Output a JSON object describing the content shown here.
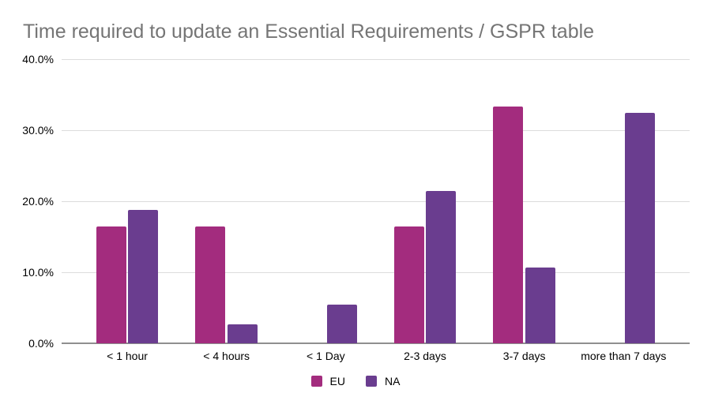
{
  "title": "Time required to update an Essential Requirements / GSPR table",
  "colors": {
    "eu_series": "#A32C7E",
    "na_series": "#6A3D8F",
    "title_text": "#757575",
    "gridline": "#dcdcdc",
    "axis_line": "#8f8f8f",
    "label_text": "#000000"
  },
  "y_axis": {
    "ticks": [
      "40.0%",
      "30.0%",
      "20.0%",
      "10.0%",
      "0.0%"
    ]
  },
  "chart_data": {
    "type": "bar",
    "title": "Time required to update an Essential Requirements / GSPR table",
    "categories": [
      "< 1 hour",
      "< 4 hours",
      "< 1 Day",
      "2-3 days",
      "3-7 days",
      "more than 7 days"
    ],
    "series": [
      {
        "name": "EU",
        "color": "#A32C7E",
        "values": [
          16.5,
          16.5,
          0,
          16.5,
          33.3,
          0
        ]
      },
      {
        "name": "NA",
        "color": "#6A3D8F",
        "values": [
          18.8,
          2.7,
          5.4,
          21.5,
          10.7,
          32.4
        ]
      }
    ],
    "xlabel": "",
    "ylabel": "",
    "ylim": [
      0,
      40
    ],
    "y_tick_step": 10,
    "y_tick_format": "percent_one_decimal",
    "grid": true,
    "legend_position": "bottom-center"
  }
}
